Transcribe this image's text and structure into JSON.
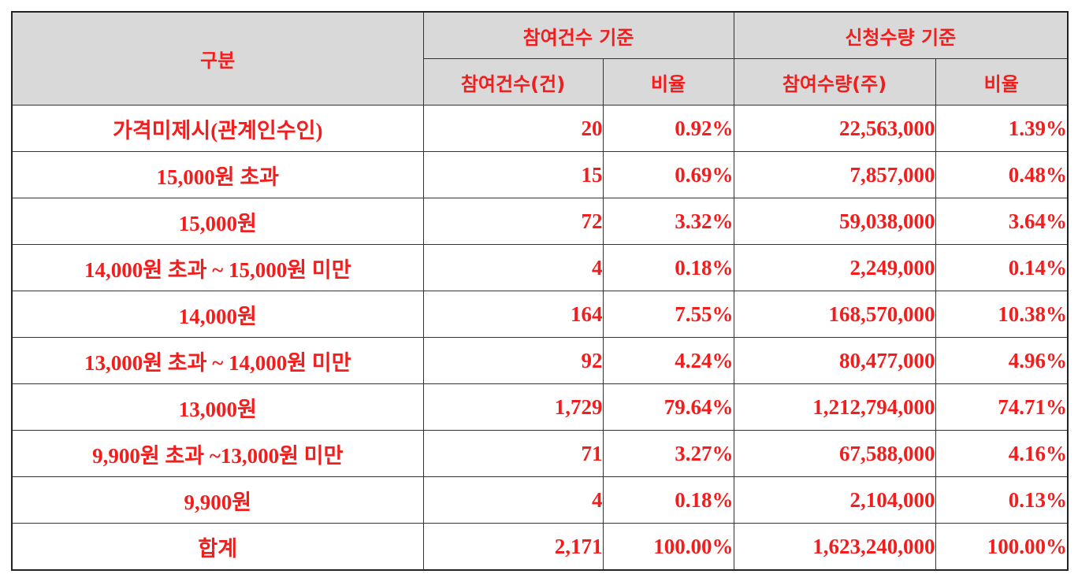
{
  "header": {
    "category": "구분",
    "group_count": "참여건수 기준",
    "group_qty": "신청수량 기준",
    "count_col": "참여건수(건)",
    "count_ratio": "비율",
    "qty_col": "참여수량(주)",
    "qty_ratio": "비율"
  },
  "rows": [
    {
      "label": "가격미제시(관계인수인)",
      "count": "20",
      "count_ratio": "0.92%",
      "qty": "22,563,000",
      "qty_ratio": "1.39%"
    },
    {
      "label": "15,000원 초과",
      "count": "15",
      "count_ratio": "0.69%",
      "qty": "7,857,000",
      "qty_ratio": "0.48%"
    },
    {
      "label": "15,000원",
      "count": "72",
      "count_ratio": "3.32%",
      "qty": "59,038,000",
      "qty_ratio": "3.64%"
    },
    {
      "label": "14,000원 초과 ~ 15,000원 미만",
      "count": "4",
      "count_ratio": "0.18%",
      "qty": "2,249,000",
      "qty_ratio": "0.14%"
    },
    {
      "label": "14,000원",
      "count": "164",
      "count_ratio": "7.55%",
      "qty": "168,570,000",
      "qty_ratio": "10.38%"
    },
    {
      "label": "13,000원 초과 ~ 14,000원 미만",
      "count": "92",
      "count_ratio": "4.24%",
      "qty": "80,477,000",
      "qty_ratio": "4.96%"
    },
    {
      "label": "13,000원",
      "count": "1,729",
      "count_ratio": "79.64%",
      "qty": "1,212,794,000",
      "qty_ratio": "74.71%"
    },
    {
      "label": "9,900원 초과 ~13,000원 미만",
      "count": "71",
      "count_ratio": "3.27%",
      "qty": "67,588,000",
      "qty_ratio": "4.16%"
    },
    {
      "label": "9,900원",
      "count": "4",
      "count_ratio": "0.18%",
      "qty": "2,104,000",
      "qty_ratio": "0.13%"
    },
    {
      "label": "합계",
      "count": "2,171",
      "count_ratio": "100.00%",
      "qty": "1,623,240,000",
      "qty_ratio": "100.00%"
    }
  ],
  "colors": {
    "text": "#f21e1e",
    "header_bg": "#d9d9d9",
    "border": "#333333"
  }
}
